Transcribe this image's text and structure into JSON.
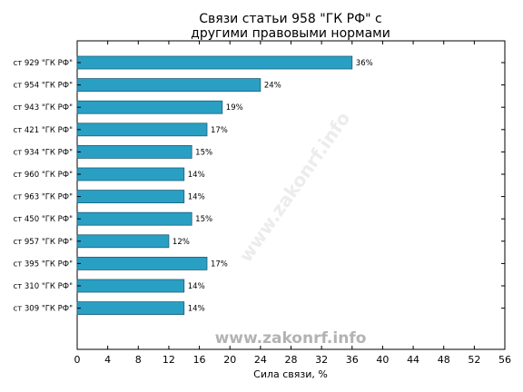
{
  "chart_data": {
    "type": "bar",
    "orientation": "horizontal",
    "title_lines": [
      "Связи статьи 958 \"ГК РФ\" с",
      "другими правовыми нормами"
    ],
    "xlabel": "Сила связи, %",
    "ylabel": "",
    "xlim": [
      0,
      56
    ],
    "xticks": [
      0,
      4,
      8,
      12,
      16,
      20,
      24,
      28,
      32,
      36,
      40,
      44,
      48,
      52,
      56
    ],
    "grid": false,
    "bar_color": "#2a9fc4",
    "categories": [
      "ст 929 \"ГК РФ\"",
      "ст 954 \"ГК РФ\"",
      "ст 943 \"ГК РФ\"",
      "ст 421 \"ГК РФ\"",
      "ст 934 \"ГК РФ\"",
      "ст 960 \"ГК РФ\"",
      "ст 963 \"ГК РФ\"",
      "ст 450 \"ГК РФ\"",
      "ст 957 \"ГК РФ\"",
      "ст 395 \"ГК РФ\"",
      "ст 310 \"ГК РФ\"",
      "ст 309 \"ГК РФ\""
    ],
    "values": [
      36,
      24,
      19,
      17,
      15,
      14,
      14,
      15,
      12,
      17,
      14,
      14
    ],
    "data_labels": [
      "36%",
      "24%",
      "19%",
      "17%",
      "15%",
      "14%",
      "14%",
      "15%",
      "12%",
      "17%",
      "14%",
      "14%"
    ]
  },
  "watermark": {
    "main": "www.zakonrf.info",
    "diagonal": "www.zakonrf.info"
  }
}
